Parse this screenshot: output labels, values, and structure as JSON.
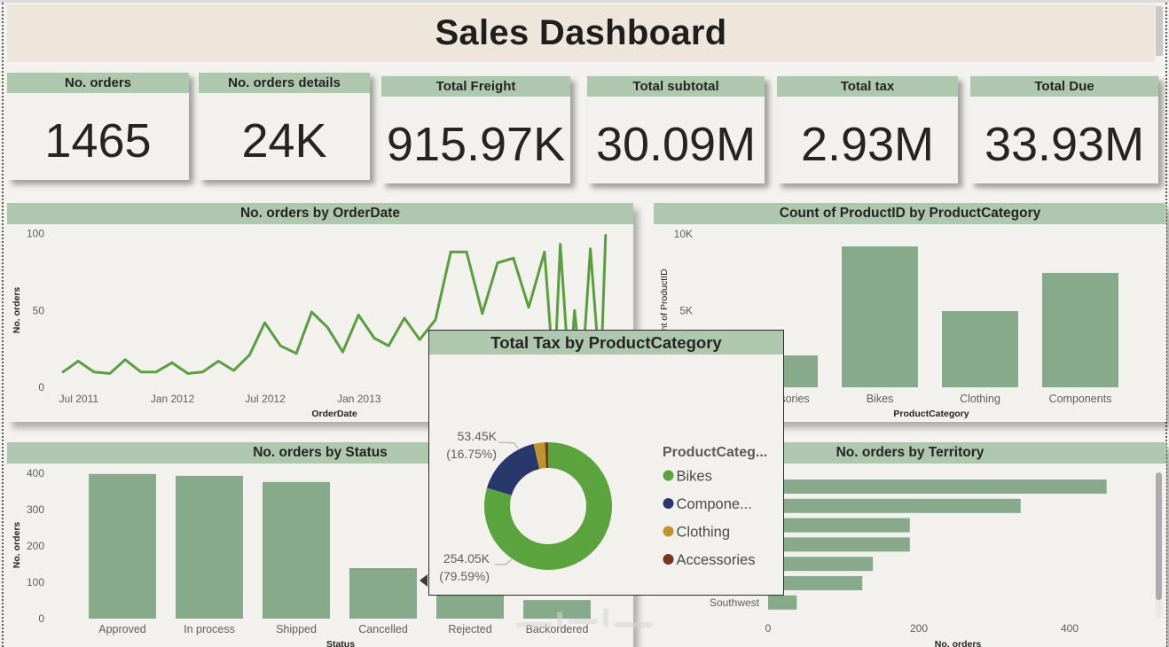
{
  "header": {
    "title": "Sales Dashboard"
  },
  "cards": [
    {
      "label": "No. orders",
      "value": "1465"
    },
    {
      "label": "No. orders details",
      "value": "24K"
    },
    {
      "label": "Total Freight",
      "value": "915.97K"
    },
    {
      "label": "Total subtotal",
      "value": "30.09M"
    },
    {
      "label": "Total tax",
      "value": "2.93M"
    },
    {
      "label": "Total Due",
      "value": "33.93M"
    }
  ],
  "colors": {
    "title_band": "#EEE6DB",
    "panel_header": "#AEC8AE",
    "bar": "#87AA8B",
    "line": "#5A9F3D",
    "page_bg": "#F3F2EE"
  },
  "chart_data": [
    {
      "key": "orders_by_date",
      "type": "line",
      "title": "No. orders by OrderDate",
      "xlabel": "OrderDate",
      "ylabel": "No. orders",
      "ylim": [
        0,
        100
      ],
      "yticks": [
        0,
        50,
        100
      ],
      "xticks": [
        {
          "label": "Jul 2011",
          "date": "2011-07-01"
        },
        {
          "label": "Jan 2012",
          "date": "2012-01-01"
        },
        {
          "label": "Jul 2012",
          "date": "2012-07-01"
        },
        {
          "label": "Jan 2013",
          "date": "2013-01-01"
        }
      ],
      "grid": false,
      "series": [
        {
          "name": "No. orders",
          "points": [
            [
              "2011-05-31",
              10
            ],
            [
              "2011-06-30",
              17
            ],
            [
              "2011-07-31",
              10
            ],
            [
              "2011-08-31",
              9
            ],
            [
              "2011-09-30",
              18
            ],
            [
              "2011-10-31",
              10
            ],
            [
              "2011-11-30",
              10
            ],
            [
              "2011-12-31",
              16
            ],
            [
              "2012-01-31",
              9
            ],
            [
              "2012-02-29",
              10
            ],
            [
              "2012-03-31",
              17
            ],
            [
              "2012-04-30",
              11
            ],
            [
              "2012-05-31",
              21
            ],
            [
              "2012-06-30",
              42
            ],
            [
              "2012-07-31",
              27
            ],
            [
              "2012-08-31",
              22
            ],
            [
              "2012-09-30",
              49
            ],
            [
              "2012-10-31",
              39
            ],
            [
              "2012-11-30",
              23
            ],
            [
              "2012-12-31",
              47
            ],
            [
              "2013-01-31",
              32
            ],
            [
              "2013-02-28",
              27
            ],
            [
              "2013-03-31",
              45
            ],
            [
              "2013-04-30",
              31
            ],
            [
              "2013-05-31",
              44
            ],
            [
              "2013-06-30",
              88
            ],
            [
              "2013-07-31",
              88
            ],
            [
              "2013-08-31",
              48
            ],
            [
              "2013-09-30",
              81
            ],
            [
              "2013-10-31",
              84
            ],
            [
              "2013-11-30",
              52
            ],
            [
              "2013-12-31",
              88
            ],
            [
              "2014-01-19",
              4
            ],
            [
              "2014-01-31",
              93
            ],
            [
              "2014-02-18",
              4
            ],
            [
              "2014-02-28",
              50
            ],
            [
              "2014-03-14",
              4
            ],
            [
              "2014-03-31",
              90
            ],
            [
              "2014-04-20",
              4
            ],
            [
              "2014-04-30",
              99
            ]
          ]
        }
      ]
    },
    {
      "key": "product_count",
      "type": "bar",
      "title": "Count of ProductID by ProductCategory",
      "xlabel": "ProductCategory",
      "ylabel": "Count of ProductID",
      "categories": [
        "Accessories",
        "Bikes",
        "Clothing",
        "Components"
      ],
      "values": [
        2080,
        9190,
        4970,
        7460
      ],
      "ylim": [
        0,
        10000
      ],
      "yticks": [
        {
          "value": 5000,
          "label": "5K"
        },
        {
          "value": 10000,
          "label": "10K"
        }
      ],
      "grid": false
    },
    {
      "key": "orders_by_status",
      "type": "bar",
      "title": "No. orders by Status",
      "xlabel": "Status",
      "ylabel": "No. orders",
      "categories": [
        "Approved",
        "In process",
        "Shipped",
        "Cancelled",
        "Rejected",
        "Backordered"
      ],
      "values": [
        398,
        393,
        376,
        139,
        108,
        51
      ],
      "ylim": [
        0,
        400
      ],
      "yticks": [
        0,
        100,
        200,
        300,
        400
      ],
      "grid": false
    },
    {
      "key": "orders_by_territory",
      "type": "bar",
      "orientation": "horizontal",
      "title": "No. orders by Territory",
      "xlabel": "No. orders",
      "ylabel": "",
      "categories": [
        "",
        "",
        "",
        "",
        "",
        "",
        "Southwest"
      ],
      "values": [
        449,
        335,
        188,
        188,
        139,
        125,
        38
      ],
      "xlim": [
        0,
        480
      ],
      "xticks": [
        0,
        200,
        400
      ],
      "grid": false
    },
    {
      "key": "tax_by_category",
      "type": "pie",
      "variant": "donut",
      "title": "Total Tax by ProductCategory",
      "legend_title": "ProductCateg...",
      "legend": "right",
      "categories": [
        "Bikes",
        "Components",
        "Clothing",
        "Accessories"
      ],
      "legend_labels": [
        "Bikes",
        "Compone...",
        "Clothing",
        "Accessories"
      ],
      "values": [
        254050,
        53450,
        9100,
        2600
      ],
      "percent": [
        79.59,
        16.75,
        2.85,
        0.81
      ],
      "data_labels": [
        {
          "value": "254.05K",
          "percent": "(79.59%)"
        },
        {
          "value": "53.45K",
          "percent": "(16.75%)"
        },
        null,
        null
      ],
      "colors": [
        "#5BA33C",
        "#28386D",
        "#C1952B",
        "#77361F"
      ]
    }
  ]
}
